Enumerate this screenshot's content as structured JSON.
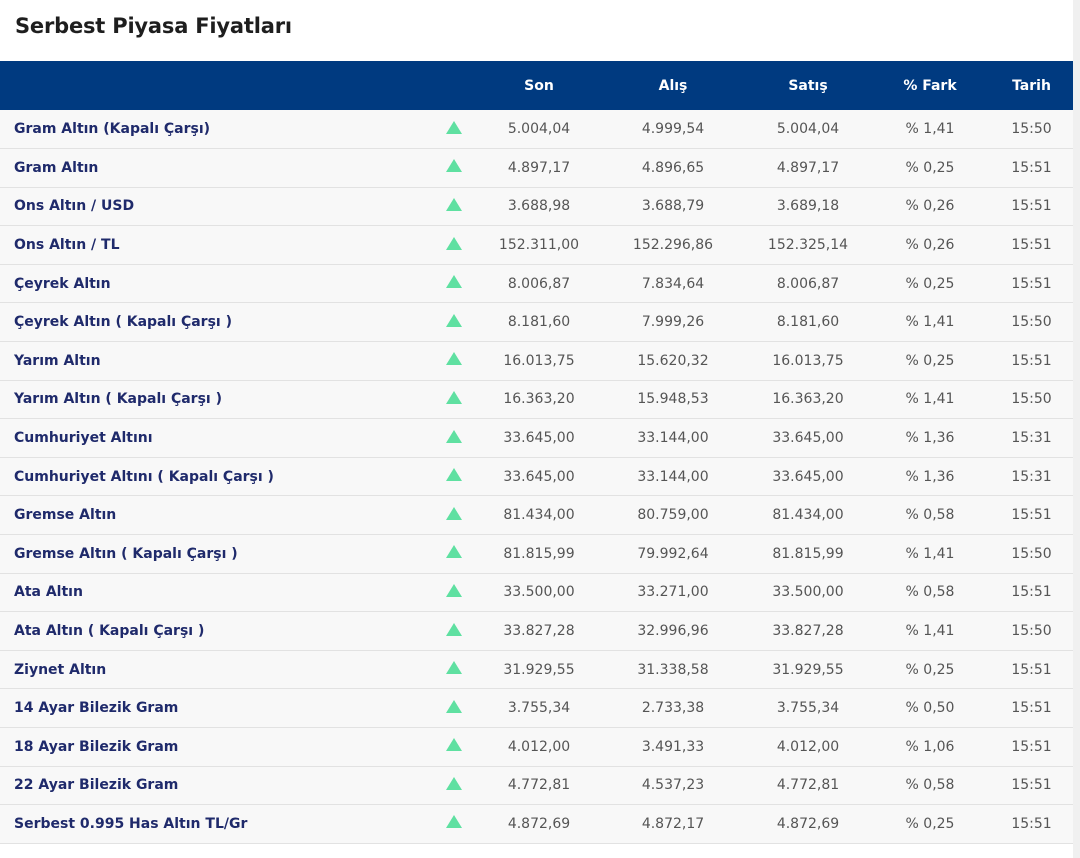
{
  "page": {
    "title": "Serbest Piyasa Fiyatları",
    "colors": {
      "header_bg": "#003a80",
      "header_text": "#ffffff",
      "name_text": "#1f2a6b",
      "value_text": "#555555",
      "up_indicator": "#5fe0a1",
      "row_bg": "#f8f8f8"
    }
  },
  "table": {
    "headers": {
      "name": "",
      "son": "Son",
      "alis": "Alış",
      "satis": "Satış",
      "fark": "% Fark",
      "tarih": "Tarih"
    },
    "indicator_icon": "up-triangle-icon",
    "rows": [
      {
        "name": "Gram Altın (Kapalı Çarşı)",
        "trend": "up",
        "son": "5.004,04",
        "alis": "4.999,54",
        "satis": "5.004,04",
        "fark": "% 1,41",
        "tarih": "15:50"
      },
      {
        "name": "Gram Altın",
        "trend": "up",
        "son": "4.897,17",
        "alis": "4.896,65",
        "satis": "4.897,17",
        "fark": "% 0,25",
        "tarih": "15:51"
      },
      {
        "name": "Ons Altın / USD",
        "trend": "up",
        "son": "3.688,98",
        "alis": "3.688,79",
        "satis": "3.689,18",
        "fark": "% 0,26",
        "tarih": "15:51"
      },
      {
        "name": "Ons Altın / TL",
        "trend": "up",
        "son": "152.311,00",
        "alis": "152.296,86",
        "satis": "152.325,14",
        "fark": "% 0,26",
        "tarih": "15:51"
      },
      {
        "name": "Çeyrek Altın",
        "trend": "up",
        "son": "8.006,87",
        "alis": "7.834,64",
        "satis": "8.006,87",
        "fark": "% 0,25",
        "tarih": "15:51"
      },
      {
        "name": "Çeyrek Altın ( Kapalı Çarşı )",
        "trend": "up",
        "son": "8.181,60",
        "alis": "7.999,26",
        "satis": "8.181,60",
        "fark": "% 1,41",
        "tarih": "15:50"
      },
      {
        "name": "Yarım Altın",
        "trend": "up",
        "son": "16.013,75",
        "alis": "15.620,32",
        "satis": "16.013,75",
        "fark": "% 0,25",
        "tarih": "15:51"
      },
      {
        "name": "Yarım Altın ( Kapalı Çarşı )",
        "trend": "up",
        "son": "16.363,20",
        "alis": "15.948,53",
        "satis": "16.363,20",
        "fark": "% 1,41",
        "tarih": "15:50"
      },
      {
        "name": "Cumhuriyet Altını",
        "trend": "up",
        "son": "33.645,00",
        "alis": "33.144,00",
        "satis": "33.645,00",
        "fark": "% 1,36",
        "tarih": "15:31"
      },
      {
        "name": "Cumhuriyet Altını ( Kapalı Çarşı )",
        "trend": "up",
        "son": "33.645,00",
        "alis": "33.144,00",
        "satis": "33.645,00",
        "fark": "% 1,36",
        "tarih": "15:31"
      },
      {
        "name": "Gremse Altın",
        "trend": "up",
        "son": "81.434,00",
        "alis": "80.759,00",
        "satis": "81.434,00",
        "fark": "% 0,58",
        "tarih": "15:51"
      },
      {
        "name": "Gremse Altın ( Kapalı Çarşı )",
        "trend": "up",
        "son": "81.815,99",
        "alis": "79.992,64",
        "satis": "81.815,99",
        "fark": "% 1,41",
        "tarih": "15:50"
      },
      {
        "name": "Ata Altın",
        "trend": "up",
        "son": "33.500,00",
        "alis": "33.271,00",
        "satis": "33.500,00",
        "fark": "% 0,58",
        "tarih": "15:51"
      },
      {
        "name": "Ata Altın ( Kapalı Çarşı )",
        "trend": "up",
        "son": "33.827,28",
        "alis": "32.996,96",
        "satis": "33.827,28",
        "fark": "% 1,41",
        "tarih": "15:50"
      },
      {
        "name": "Ziynet Altın",
        "trend": "up",
        "son": "31.929,55",
        "alis": "31.338,58",
        "satis": "31.929,55",
        "fark": "% 0,25",
        "tarih": "15:51"
      },
      {
        "name": "14 Ayar Bilezik Gram",
        "trend": "up",
        "son": "3.755,34",
        "alis": "2.733,38",
        "satis": "3.755,34",
        "fark": "% 0,50",
        "tarih": "15:51"
      },
      {
        "name": "18 Ayar Bilezik Gram",
        "trend": "up",
        "son": "4.012,00",
        "alis": "3.491,33",
        "satis": "4.012,00",
        "fark": "% 1,06",
        "tarih": "15:51"
      },
      {
        "name": "22 Ayar Bilezik Gram",
        "trend": "up",
        "son": "4.772,81",
        "alis": "4.537,23",
        "satis": "4.772,81",
        "fark": "% 0,58",
        "tarih": "15:51"
      },
      {
        "name": "Serbest 0.995 Has Altın TL/Gr",
        "trend": "up",
        "son": "4.872,69",
        "alis": "4.872,17",
        "satis": "4.872,69",
        "fark": "% 0,25",
        "tarih": "15:51"
      }
    ]
  }
}
